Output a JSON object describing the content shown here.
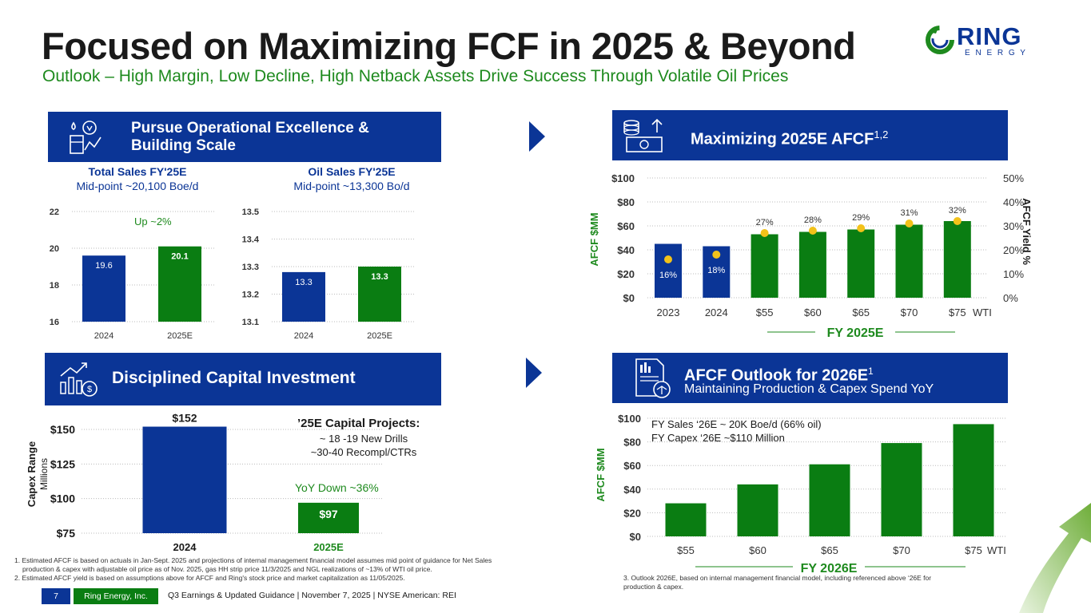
{
  "header": {
    "title": "Focused on Maximizing FCF in 2025 & Beyond",
    "subtitle": "Outlook – High Margin, Low Decline, High Netback Assets Drive Success Through Volatile Oil Prices",
    "logo_word": "RING",
    "logo_sub": "E N E R G Y"
  },
  "colors": {
    "blue": "#0b3596",
    "green": "#0a7d12",
    "gold": "#f2c21a",
    "light_green": "#1e8a1e"
  },
  "panel_ops": {
    "banner_line1": "Pursue Operational Excellence &",
    "banner_line2": "Building Scale",
    "icon": "oil-water-icon",
    "total_sales": {
      "title": "Total Sales FY'25E",
      "subtitle": "Mid-point ~20,100 Boe/d",
      "annotation": "Up ~2%"
    },
    "oil_sales": {
      "title": "Oil Sales FY'25E",
      "subtitle": "Mid-point ~13,300 Bo/d"
    }
  },
  "panel_afcf": {
    "banner_title": "Maximizing 2025E AFCF",
    "banner_sup": "1,2",
    "icon": "cash-growth-icon",
    "fy_label": "FY 2025E"
  },
  "panel_capital": {
    "banner_title": "Disciplined Capital Investment",
    "icon": "capital-chart-icon",
    "projects_title": "’25E Capital Projects:",
    "projects_line1": "~ 18 -19 New Drills",
    "projects_line2": "~30-40 Recompl/CTRs",
    "yoy": "YoY Down ~36%"
  },
  "panel_2026": {
    "banner_title": "AFCF Outlook for 2026E",
    "banner_sup": "1",
    "banner_sub": "Maintaining Production & Capex Spend YoY",
    "icon": "report-balance-icon",
    "note1": "FY Sales ‘26E ~ 20K Boe/d (66% oil)",
    "note2": "FY Capex ‘26E ~$110 Million",
    "fy_label": "FY 2026E"
  },
  "chart_data": [
    {
      "id": "total_sales",
      "type": "bar",
      "categories": [
        "2024",
        "2025E"
      ],
      "values": [
        19.6,
        20.1
      ],
      "labels": [
        "19.6",
        "20.1"
      ],
      "ylim": [
        16,
        22
      ],
      "yticks": [
        16,
        18,
        20,
        22
      ],
      "ytick_labels": [
        "16",
        "18",
        "20",
        "22"
      ]
    },
    {
      "id": "oil_sales",
      "type": "bar",
      "categories": [
        "2024",
        "2025E"
      ],
      "values": [
        13.28,
        13.3
      ],
      "labels": [
        "13.3",
        "13.3"
      ],
      "ylim": [
        13.1,
        13.5
      ],
      "yticks": [
        13.1,
        13.2,
        13.3,
        13.4,
        13.5
      ],
      "ytick_labels": [
        "13.1",
        "13.2",
        "13.3",
        "13.4",
        "13.5"
      ]
    },
    {
      "id": "afcf_2025",
      "type": "bar",
      "categories": [
        "2023",
        "2024",
        "$55",
        "$60",
        "$65",
        "$70",
        "$75"
      ],
      "x_suffix": "WTI",
      "series": [
        {
          "name": "AFCF $MM",
          "values": [
            45,
            43,
            53,
            55,
            57,
            61,
            64
          ]
        },
        {
          "name": "AFCF Yield %",
          "values": [
            16,
            18,
            27,
            28,
            29,
            31,
            32
          ],
          "labels": [
            "16%",
            "18%",
            "27%",
            "28%",
            "29%",
            "31%",
            "32%"
          ]
        }
      ],
      "ylabel": "AFCF $MM",
      "y2label": "AFCF Yield %",
      "ylim": [
        0,
        100
      ],
      "y2lim": [
        0,
        50
      ],
      "yticks": [
        "$0",
        "$20",
        "$40",
        "$60",
        "$80",
        "$100"
      ],
      "y2ticks": [
        "0%",
        "10%",
        "20%",
        "30%",
        "40%",
        "50%"
      ]
    },
    {
      "id": "capex",
      "type": "bar",
      "categories": [
        "2024",
        "2025E"
      ],
      "values": [
        152,
        97
      ],
      "labels": [
        "$152",
        "$97"
      ],
      "ylabel": "Capex Range",
      "ylabel2": "Millions",
      "ylim": [
        75,
        150
      ],
      "yticks": [
        "$75",
        "$100",
        "$125",
        "$150"
      ]
    },
    {
      "id": "afcf_2026",
      "type": "bar",
      "categories": [
        "$55",
        "$60",
        "$65",
        "$70",
        "$75"
      ],
      "x_suffix": "WTI",
      "values": [
        28,
        44,
        61,
        79,
        95
      ],
      "ylabel": "AFCF $MM",
      "ylim": [
        0,
        100
      ],
      "yticks": [
        "$0",
        "$20",
        "$40",
        "$60",
        "$80",
        "$100"
      ]
    }
  ],
  "footnotes": {
    "left1": "1. Estimated AFCF is based on actuals in Jan-Sept. 2025 and projections of internal management financial model assumes mid point of guidance for Net Sales",
    "left2": "production & capex with adjustable oil price as of Nov. 2025, gas HH strip price 11/3/2025 and NGL realizations of ~13% of WTI oil price.",
    "left3": "2. Estimated AFCF yield is based on assumptions above for AFCF and Ring's stock price and market capitalization as 11/05/2025.",
    "right1": "3.      Outlook 2026E, based on internal management financial model, including referenced above ‘26E for",
    "right2": "production & capex."
  },
  "footer": {
    "page": "7",
    "company": "Ring Energy, Inc.",
    "event": "Q3 Earnings & Updated Guidance | November 7, 2025 |  NYSE American: REI"
  }
}
